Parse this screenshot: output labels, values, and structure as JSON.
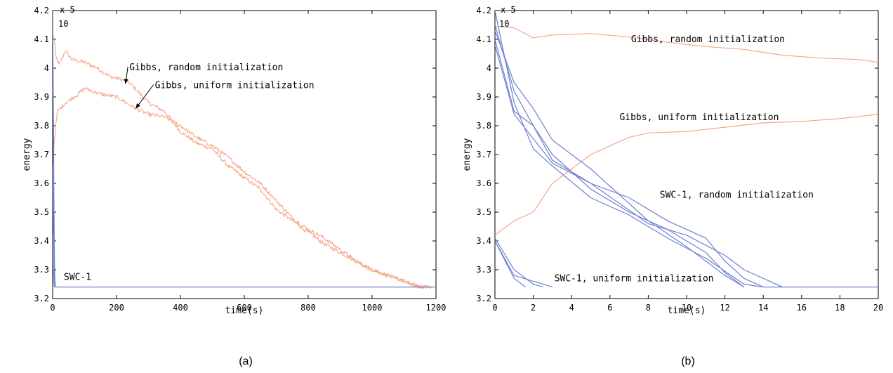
{
  "chart_data": [
    {
      "type": "line",
      "caption": "(a)",
      "xlabel": "time(s)",
      "ylabel": "energy",
      "y_multiplier": [
        "x",
        "10",
        "5"
      ],
      "xlim": [
        0,
        1200
      ],
      "ylim": [
        3.2,
        4.2
      ],
      "xticks": [
        0,
        200,
        400,
        600,
        800,
        1000,
        1200
      ],
      "yticks": [
        3.2,
        3.3,
        3.4,
        3.5,
        3.6,
        3.7,
        3.8,
        3.9,
        4,
        4.1,
        4.2
      ],
      "colors": {
        "gibbs": "#f5a58a",
        "swc": "#6e80d0"
      },
      "series": [
        {
          "family": "gibbs",
          "noisy": true,
          "points": [
            [
              0,
              4.12
            ],
            [
              5,
              4.1
            ],
            [
              10,
              4.04
            ],
            [
              20,
              4.01
            ],
            [
              40,
              4.06
            ],
            [
              60,
              4.03
            ],
            [
              100,
              4.02
            ],
            [
              140,
              4.0
            ],
            [
              180,
              3.97
            ],
            [
              220,
              3.96
            ],
            [
              240,
              3.95
            ],
            [
              300,
              3.88
            ],
            [
              350,
              3.85
            ],
            [
              400,
              3.78
            ],
            [
              450,
              3.74
            ],
            [
              500,
              3.72
            ],
            [
              550,
              3.66
            ],
            [
              600,
              3.62
            ],
            [
              650,
              3.58
            ],
            [
              700,
              3.51
            ],
            [
              750,
              3.47
            ],
            [
              800,
              3.43
            ],
            [
              850,
              3.39
            ],
            [
              900,
              3.36
            ],
            [
              950,
              3.33
            ],
            [
              1000,
              3.3
            ],
            [
              1050,
              3.28
            ],
            [
              1100,
              3.26
            ],
            [
              1150,
              3.24
            ],
            [
              1185,
              3.24
            ]
          ]
        },
        {
          "family": "gibbs",
          "noisy": true,
          "points": [
            [
              0,
              3.62
            ],
            [
              5,
              3.75
            ],
            [
              15,
              3.85
            ],
            [
              40,
              3.88
            ],
            [
              80,
              3.91
            ],
            [
              100,
              3.93
            ],
            [
              150,
              3.91
            ],
            [
              200,
              3.9
            ],
            [
              260,
              3.86
            ],
            [
              300,
              3.84
            ],
            [
              350,
              3.83
            ],
            [
              400,
              3.8
            ],
            [
              450,
              3.76
            ],
            [
              500,
              3.73
            ],
            [
              550,
              3.69
            ],
            [
              600,
              3.64
            ],
            [
              650,
              3.6
            ],
            [
              700,
              3.54
            ],
            [
              750,
              3.48
            ],
            [
              800,
              3.44
            ],
            [
              850,
              3.41
            ],
            [
              900,
              3.37
            ],
            [
              950,
              3.33
            ],
            [
              1000,
              3.3
            ],
            [
              1050,
              3.28
            ],
            [
              1100,
              3.26
            ],
            [
              1150,
              3.24
            ],
            [
              1185,
              3.24
            ]
          ]
        },
        {
          "family": "swc",
          "noisy": false,
          "points": [
            [
              0,
              4.2
            ],
            [
              2,
              3.9
            ],
            [
              4,
              3.55
            ],
            [
              6,
              3.3
            ],
            [
              8,
              3.24
            ],
            [
              1200,
              3.24
            ]
          ]
        },
        {
          "family": "swc",
          "noisy": false,
          "points": [
            [
              0,
              3.65
            ],
            [
              3,
              3.4
            ],
            [
              6,
              3.28
            ],
            [
              8,
              3.24
            ]
          ]
        },
        {
          "family": "swc",
          "noisy": false,
          "points": [
            [
              1,
              4.0
            ],
            [
              3,
              3.6
            ],
            [
              5,
              3.35
            ],
            [
              7,
              3.24
            ]
          ]
        },
        {
          "family": "swc",
          "noisy": false,
          "points": [
            [
              0,
              3.42
            ],
            [
              2,
              3.3
            ],
            [
              5,
              3.24
            ]
          ]
        }
      ],
      "annotations": [
        {
          "text": "Gibbs, random initialization",
          "x": 240,
          "y": 3.993,
          "arrow_to": [
            228,
            3.945
          ]
        },
        {
          "text": "Gibbs, uniform initialization",
          "x": 320,
          "y": 3.93,
          "arrow_to": [
            260,
            3.86
          ]
        },
        {
          "text": "SWC-1",
          "x": 35,
          "y": 3.265
        }
      ]
    },
    {
      "type": "line",
      "caption": "(b)",
      "xlabel": "time(s)",
      "ylabel": "energy",
      "y_multiplier": [
        "x",
        "10",
        "5"
      ],
      "xlim": [
        0,
        20
      ],
      "ylim": [
        3.2,
        4.2
      ],
      "xticks": [
        0,
        2,
        4,
        6,
        8,
        10,
        12,
        14,
        16,
        18,
        20
      ],
      "yticks": [
        3.2,
        3.3,
        3.4,
        3.5,
        3.6,
        3.7,
        3.8,
        3.9,
        4,
        4.1,
        4.2
      ],
      "colors": {
        "gibbs": "#f5a58a",
        "swc": "#6e80d0"
      },
      "series": [
        {
          "family": "gibbs",
          "noisy": false,
          "points": [
            [
              0,
              4.145
            ],
            [
              1,
              4.14
            ],
            [
              2,
              4.105
            ],
            [
              3,
              4.115
            ],
            [
              5,
              4.12
            ],
            [
              7,
              4.108
            ],
            [
              9,
              4.09
            ],
            [
              11,
              4.075
            ],
            [
              13,
              4.065
            ],
            [
              15,
              4.045
            ],
            [
              17,
              4.035
            ],
            [
              19,
              4.03
            ],
            [
              20,
              4.02
            ]
          ]
        },
        {
          "family": "gibbs",
          "noisy": false,
          "points": [
            [
              0,
              3.42
            ],
            [
              1,
              3.47
            ],
            [
              2,
              3.5
            ],
            [
              3,
              3.6
            ],
            [
              4,
              3.65
            ],
            [
              5,
              3.7
            ],
            [
              6,
              3.73
            ],
            [
              7,
              3.76
            ],
            [
              8,
              3.775
            ],
            [
              10,
              3.78
            ],
            [
              12,
              3.795
            ],
            [
              14,
              3.81
            ],
            [
              16,
              3.815
            ],
            [
              18,
              3.825
            ],
            [
              20,
              3.84
            ]
          ]
        },
        {
          "family": "swc",
          "noisy": false,
          "points": [
            [
              0,
              4.2
            ],
            [
              1,
              3.88
            ],
            [
              2,
              3.72
            ],
            [
              3,
              3.66
            ],
            [
              5,
              3.55
            ],
            [
              7,
              3.49
            ],
            [
              9,
              3.41
            ],
            [
              11,
              3.34
            ],
            [
              13,
              3.25
            ],
            [
              14,
              3.24
            ],
            [
              20,
              3.24
            ]
          ]
        },
        {
          "family": "swc",
          "noisy": false,
          "points": [
            [
              0,
              4.15
            ],
            [
              1,
              3.92
            ],
            [
              2,
              3.8
            ],
            [
              3,
              3.7
            ],
            [
              5,
              3.58
            ],
            [
              7,
              3.5
            ],
            [
              9,
              3.44
            ],
            [
              11,
              3.36
            ],
            [
              12,
              3.29
            ],
            [
              13,
              3.24
            ]
          ]
        },
        {
          "family": "swc",
          "noisy": false,
          "points": [
            [
              0,
              4.13
            ],
            [
              1,
              3.95
            ],
            [
              2,
              3.86
            ],
            [
              3,
              3.75
            ],
            [
              5,
              3.65
            ],
            [
              8,
              3.47
            ],
            [
              10,
              3.38
            ],
            [
              12,
              3.28
            ],
            [
              13,
              3.24
            ]
          ]
        },
        {
          "family": "swc",
          "noisy": false,
          "points": [
            [
              0,
              4.1
            ],
            [
              1,
              3.85
            ],
            [
              2,
              3.8
            ],
            [
              3,
              3.68
            ],
            [
              5,
              3.6
            ],
            [
              7,
              3.55
            ],
            [
              9,
              3.47
            ],
            [
              11,
              3.41
            ],
            [
              12,
              3.33
            ],
            [
              13,
              3.27
            ],
            [
              14,
              3.24
            ]
          ]
        },
        {
          "family": "swc",
          "noisy": false,
          "points": [
            [
              0,
              4.08
            ],
            [
              1,
              3.84
            ],
            [
              3,
              3.67
            ],
            [
              5,
              3.6
            ],
            [
              8,
              3.46
            ],
            [
              10,
              3.42
            ],
            [
              12,
              3.35
            ],
            [
              13,
              3.3
            ],
            [
              15,
              3.24
            ]
          ]
        },
        {
          "family": "swc",
          "noisy": false,
          "points": [
            [
              0,
              3.4
            ],
            [
              0.5,
              3.34
            ],
            [
              1,
              3.28
            ],
            [
              2,
              3.26
            ],
            [
              3,
              3.24
            ]
          ]
        },
        {
          "family": "swc",
          "noisy": false,
          "points": [
            [
              0,
              3.41
            ],
            [
              1,
              3.3
            ],
            [
              2,
              3.25
            ],
            [
              2.5,
              3.24
            ]
          ]
        },
        {
          "family": "swc",
          "noisy": false,
          "points": [
            [
              0,
              3.4
            ],
            [
              1,
              3.27
            ],
            [
              1.6,
              3.24
            ]
          ]
        }
      ],
      "annotations": [
        {
          "text": "Gibbs, random initialization",
          "x": 7.1,
          "y": 4.09
        },
        {
          "text": "Gibbs, uniform initialization",
          "x": 6.5,
          "y": 3.82
        },
        {
          "text": "SWC-1, random initialization",
          "x": 8.6,
          "y": 3.55
        },
        {
          "text": "SWC-1, uniform initialization",
          "x": 3.1,
          "y": 3.26
        }
      ]
    }
  ]
}
